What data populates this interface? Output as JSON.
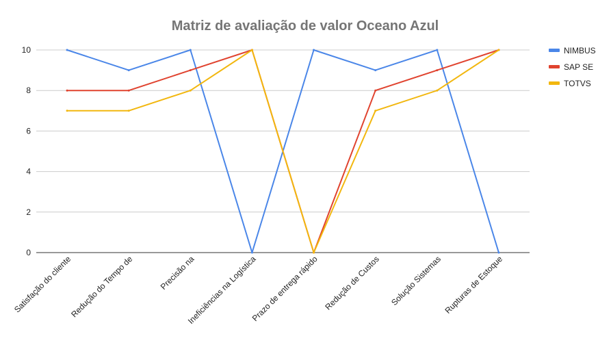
{
  "chart_data": {
    "type": "line",
    "title": "Matriz de avaliação de valor Oceano Azul",
    "categories": [
      "Satisfação do cliente",
      "Redução do Tempo de",
      "Precisão na",
      "Ineficiências na Logística",
      "Prazo de entrega rápido",
      "Redução de Custos",
      "Solução Sistemas",
      "Rupturas de Estoque"
    ],
    "series": [
      {
        "name": "NIMBUS",
        "color": "#4a86e8",
        "values": [
          10,
          9,
          10,
          0,
          10,
          9,
          10,
          0
        ]
      },
      {
        "name": "SAP SE",
        "color": "#e0432f",
        "values": [
          8,
          8,
          9,
          10,
          0,
          8,
          9,
          10
        ]
      },
      {
        "name": "TOTVS",
        "color": "#f2b70f",
        "values": [
          7,
          7,
          8,
          10,
          0,
          7,
          8,
          10
        ]
      }
    ],
    "ylim": [
      0,
      10
    ],
    "yticks": [
      0,
      2,
      4,
      6,
      8,
      10
    ],
    "grid": true,
    "legend": "right"
  }
}
